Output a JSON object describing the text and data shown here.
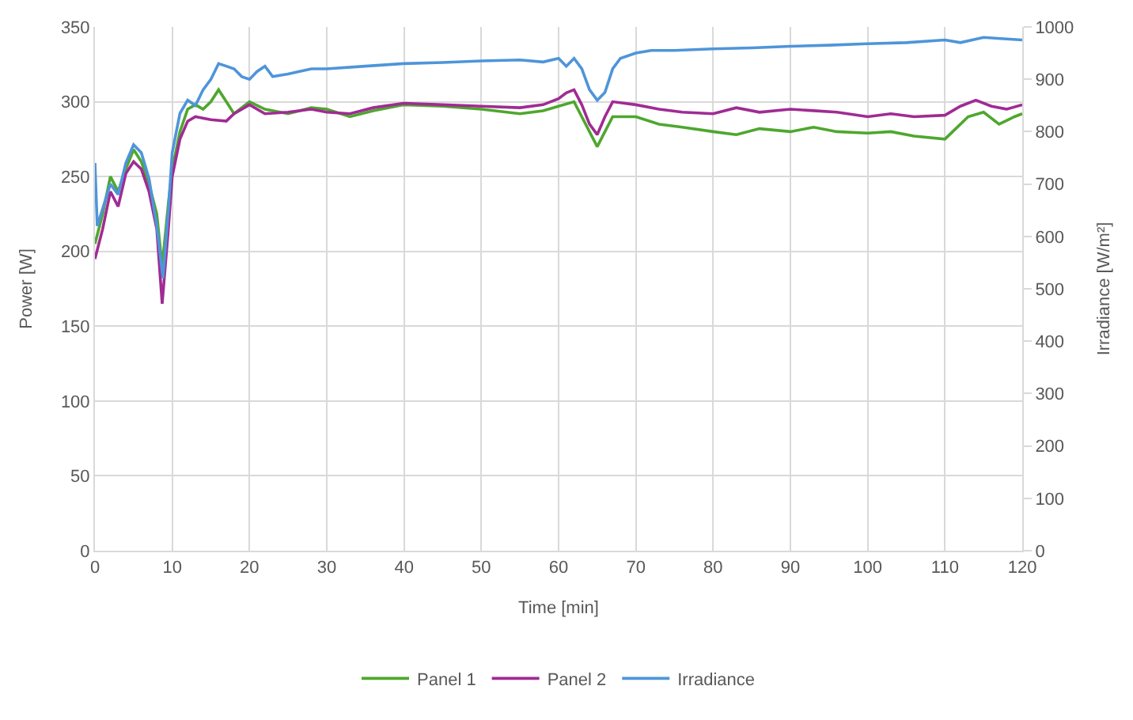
{
  "chart_data": {
    "type": "line",
    "xlabel": "Time [min]",
    "ylabel": "Power [W]",
    "y2label": "Irradiance [W/m²]",
    "xlim": [
      0,
      120
    ],
    "xticks": [
      0,
      10,
      20,
      30,
      40,
      50,
      60,
      70,
      80,
      90,
      100,
      110,
      120
    ],
    "ylim": [
      0,
      350
    ],
    "yticks": [
      0,
      50,
      100,
      150,
      200,
      250,
      300,
      350
    ],
    "y2lim": [
      0,
      1000
    ],
    "y2ticks": [
      0,
      100,
      200,
      300,
      400,
      500,
      600,
      700,
      800,
      900,
      1000
    ],
    "grid": true,
    "legend": "bottom",
    "marker": "none",
    "line_style": "solid",
    "series": [
      {
        "name": "Panel 1",
        "color": "#4ea72e",
        "x": [
          0,
          1,
          2,
          3,
          4,
          5,
          6,
          7,
          8,
          8.7,
          9.5,
          10,
          11,
          12,
          13,
          14,
          15,
          16,
          17,
          18,
          20,
          22,
          25,
          28,
          30,
          33,
          36,
          40,
          45,
          50,
          55,
          58,
          60,
          62,
          63,
          64,
          65,
          66,
          67,
          70,
          73,
          76,
          80,
          83,
          86,
          90,
          93,
          96,
          100,
          103,
          106,
          110,
          111,
          113,
          115,
          117,
          119,
          120
        ],
        "values": [
          205,
          225,
          250,
          240,
          255,
          268,
          260,
          245,
          225,
          190,
          232,
          255,
          280,
          295,
          298,
          295,
          300,
          308,
          300,
          292,
          300,
          295,
          292,
          296,
          295,
          290,
          294,
          298,
          297,
          295,
          292,
          294,
          297,
          300,
          290,
          280,
          270,
          280,
          290,
          290,
          285,
          283,
          280,
          278,
          282,
          280,
          283,
          280,
          279,
          280,
          277,
          275,
          280,
          290,
          293,
          285,
          290,
          292
        ]
      },
      {
        "name": "Panel 2",
        "color": "#a02b93",
        "x": [
          0,
          1,
          2,
          3,
          4,
          5,
          6,
          7,
          8,
          8.7,
          9.5,
          10,
          11,
          12,
          13,
          15,
          17,
          18,
          20,
          22,
          25,
          28,
          30,
          33,
          36,
          40,
          45,
          50,
          55,
          58,
          60,
          61,
          62,
          63,
          64,
          65,
          66,
          67,
          70,
          73,
          76,
          80,
          83,
          86,
          90,
          93,
          96,
          100,
          103,
          106,
          110,
          112,
          114,
          116,
          118,
          120
        ],
        "values": [
          195,
          215,
          240,
          230,
          252,
          260,
          255,
          240,
          215,
          165,
          215,
          250,
          275,
          287,
          290,
          288,
          287,
          292,
          298,
          292,
          293,
          295,
          293,
          292,
          296,
          299,
          298,
          297,
          296,
          298,
          302,
          306,
          308,
          298,
          285,
          278,
          290,
          300,
          298,
          295,
          293,
          292,
          296,
          293,
          295,
          294,
          293,
          290,
          292,
          290,
          291,
          297,
          301,
          297,
          295,
          298
        ]
      },
      {
        "name": "Irradiance",
        "color": "#4e95d9",
        "axis": "y2",
        "x": [
          0,
          0.3,
          2,
          3,
          4,
          5,
          6,
          7,
          8,
          8.8,
          9.5,
          10,
          11,
          12,
          13,
          14,
          15,
          16,
          17,
          18,
          19,
          20,
          21,
          22,
          23,
          25,
          28,
          30,
          35,
          40,
          45,
          50,
          55,
          58,
          60,
          61,
          62,
          63,
          64,
          65,
          66,
          67,
          68,
          70,
          72,
          75,
          80,
          85,
          90,
          95,
          100,
          105,
          110,
          112,
          115,
          118,
          120
        ],
        "values": [
          740,
          620,
          700,
          680,
          740,
          775,
          760,
          710,
          620,
          520,
          650,
          760,
          835,
          860,
          850,
          880,
          900,
          930,
          925,
          920,
          905,
          900,
          915,
          925,
          905,
          910,
          920,
          920,
          925,
          930,
          932,
          935,
          937,
          933,
          940,
          925,
          940,
          920,
          880,
          860,
          875,
          920,
          940,
          950,
          955,
          955,
          958,
          960,
          963,
          965,
          968,
          970,
          975,
          970,
          980,
          977,
          975
        ]
      }
    ]
  }
}
